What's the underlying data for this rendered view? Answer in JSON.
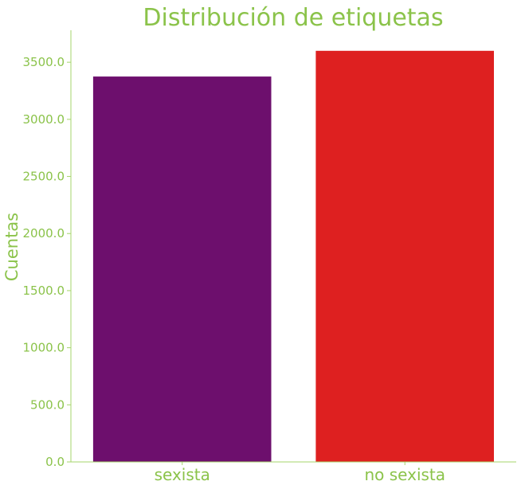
{
  "chart_data": {
    "type": "bar",
    "title": "Distribución de etiquetas",
    "xlabel": "",
    "ylabel": "Cuentas",
    "categories": [
      "sexista",
      "no sexista"
    ],
    "values": [
      3375,
      3600
    ],
    "colors": [
      "#6d0f6d",
      "#de2020"
    ],
    "ylim": [
      0,
      3780
    ],
    "yticks": [
      0,
      500,
      1000,
      1500,
      2000,
      2500,
      3000,
      3500
    ],
    "ytick_labels": [
      "0.0",
      "500.0",
      "1000.0",
      "1500.0",
      "2000.0",
      "2500.0",
      "3000.0",
      "3500.0"
    ],
    "grid": false,
    "legend": "none"
  },
  "theme": {
    "text_color": "#8bc34a",
    "axis_color": "#a5d66b"
  }
}
